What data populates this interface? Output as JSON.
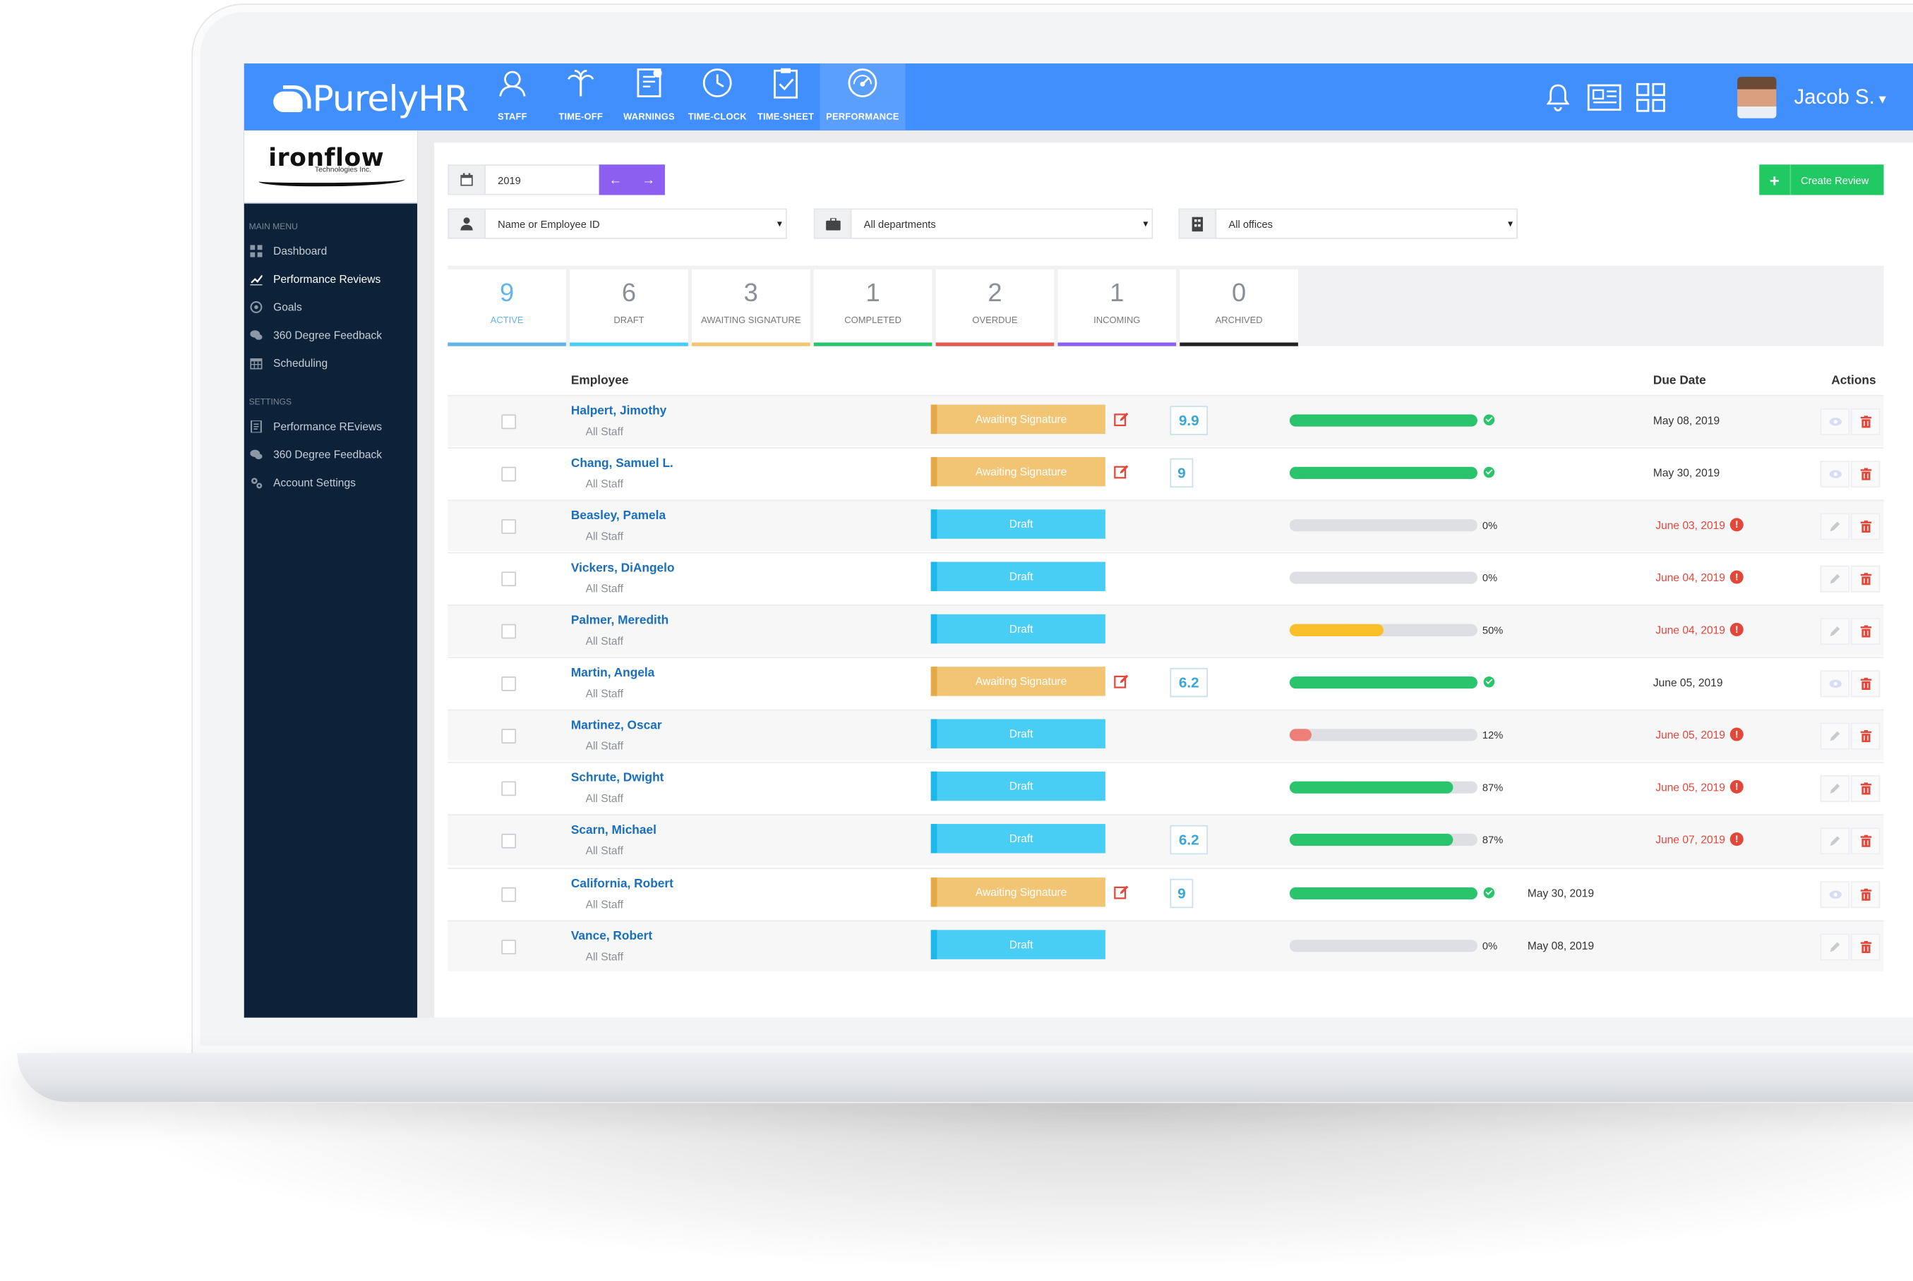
{
  "brand": {
    "name": "PurelyHR"
  },
  "nav": [
    {
      "label": "STAFF",
      "icon": "staff-icon"
    },
    {
      "label": "TIME-OFF",
      "icon": "palm-tree-icon"
    },
    {
      "label": "WARNINGS",
      "icon": "warning-document-icon"
    },
    {
      "label": "TIME-CLOCK",
      "icon": "clock-icon"
    },
    {
      "label": "TIME-SHEET",
      "icon": "clipboard-check-icon"
    },
    {
      "label": "PERFORMANCE",
      "icon": "gauge-icon",
      "active": true
    }
  ],
  "user": {
    "name": "Jacob S."
  },
  "company": {
    "name_main": "ironflow",
    "name_sub": "Technologies Inc."
  },
  "sidebar": {
    "main_heading": "MAIN MENU",
    "main_items": [
      {
        "label": "Dashboard",
        "icon": "grid-icon"
      },
      {
        "label": "Performance Reviews",
        "icon": "chart-line-icon",
        "active": true
      },
      {
        "label": "Goals",
        "icon": "target-icon"
      },
      {
        "label": "360 Degree Feedback",
        "icon": "chat-bubbles-icon"
      },
      {
        "label": "Scheduling",
        "icon": "calendar-icon"
      }
    ],
    "settings_heading": "SETTINGS",
    "settings_items": [
      {
        "label": "Performance REviews",
        "icon": "document-icon"
      },
      {
        "label": "360 Degree Feedback",
        "icon": "chat-bubbles-icon"
      },
      {
        "label": "Account Settings",
        "icon": "cogs-icon"
      }
    ]
  },
  "filters": {
    "year": "2019",
    "employee_placeholder": "Name or Employee ID",
    "department": "All departments",
    "office": "All offices"
  },
  "create_button": "Create Review",
  "tabs": [
    {
      "count": "9",
      "label": "ACTIVE",
      "color": "#64b4ea",
      "active": true
    },
    {
      "count": "6",
      "label": "DRAFT",
      "color": "#48cdf5"
    },
    {
      "count": "3",
      "label": "AWAITING SIGNATURE",
      "color": "#f2c575"
    },
    {
      "count": "1",
      "label": "COMPLETED",
      "color": "#29c46c"
    },
    {
      "count": "2",
      "label": "OVERDUE",
      "color": "#e05a52"
    },
    {
      "count": "1",
      "label": "INCOMING",
      "color": "#8d5ff0"
    },
    {
      "count": "0",
      "label": "ARCHIVED",
      "color": "#222222"
    }
  ],
  "table": {
    "headers": {
      "employee": "Employee",
      "due": "Due Date",
      "actions": "Actions"
    },
    "rows": [
      {
        "name": "Halpert, Jimothy",
        "group": "All Staff",
        "status": "Awaiting Signature",
        "score": "9.9",
        "progress": 100,
        "pct": "",
        "due": "May 08, 2019",
        "late": false
      },
      {
        "name": "Chang, Samuel L.",
        "group": "All Staff",
        "status": "Awaiting Signature",
        "score": "9",
        "progress": 100,
        "pct": "",
        "due": "May 30, 2019",
        "late": false
      },
      {
        "name": "Beasley, Pamela",
        "group": "All Staff",
        "status": "Draft",
        "score": "",
        "progress": 0,
        "pct": "0%",
        "due": "June 03, 2019",
        "late": true
      },
      {
        "name": "Vickers, DiAngelo",
        "group": "All Staff",
        "status": "Draft",
        "score": "",
        "progress": 0,
        "pct": "0%",
        "due": "June 04, 2019",
        "late": true
      },
      {
        "name": "Palmer, Meredith",
        "group": "All Staff",
        "status": "Draft",
        "score": "",
        "progress": 50,
        "pct": "50%",
        "due": "June 04, 2019",
        "late": true
      },
      {
        "name": "Martin, Angela",
        "group": "All Staff",
        "status": "Awaiting Signature",
        "score": "6.2",
        "progress": 100,
        "pct": "",
        "due": "June 05, 2019",
        "late": false
      },
      {
        "name": "Martinez, Oscar",
        "group": "All Staff",
        "status": "Draft",
        "score": "",
        "progress": 12,
        "pct": "12%",
        "due": "June 05, 2019",
        "late": true
      },
      {
        "name": "Schrute, Dwight",
        "group": "All Staff",
        "status": "Draft",
        "score": "",
        "progress": 87,
        "pct": "87%",
        "due": "June 05, 2019",
        "late": true
      },
      {
        "name": "Scarn, Michael",
        "group": "All Staff",
        "status": "Draft",
        "score": "6.2",
        "progress": 87,
        "pct": "87%",
        "due": "June 07, 2019",
        "late": true
      },
      {
        "name": "California, Robert",
        "group": "All Staff",
        "status": "Awaiting Signature",
        "score": "9",
        "progress": 100,
        "pct": "",
        "due": "May 30, 2019",
        "late": false,
        "due_offset": true
      },
      {
        "name": "Vance, Robert",
        "group": "All Staff",
        "status": "Draft",
        "score": "",
        "progress": 0,
        "pct": "0%",
        "due": "May 08, 2019",
        "late": false,
        "due_offset": true
      }
    ]
  },
  "colors": {
    "accent": "#418ffc",
    "success": "#29c46c",
    "danger": "#e2473a",
    "draft": "#48cdf5",
    "signature": "#f2c575",
    "warning_progress": "#fbbf2a",
    "low_progress": "#ec7f78"
  }
}
